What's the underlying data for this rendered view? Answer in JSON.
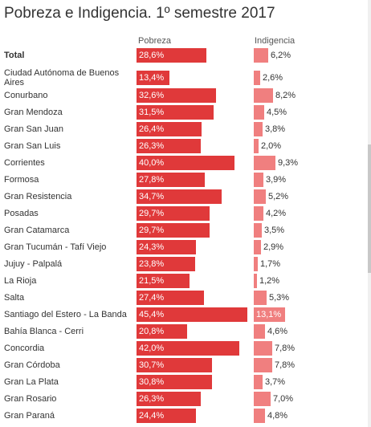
{
  "title": "Pobreza e Indigencia. 1º semestre 2017",
  "chart_data": {
    "type": "bar",
    "title": "Pobreza e Indigencia. 1º semestre 2017",
    "categories": [
      "Total",
      "Ciudad Autónoma de Buenos Aires",
      "Conurbano",
      "Gran Mendoza",
      "Gran San Juan",
      "Gran San Luis",
      "Corrientes",
      "Formosa",
      "Gran Resistencia",
      "Posadas",
      "Gran Catamarca",
      "Gran Tucumán - Tafí Viejo",
      "Jujuy - Palpalá",
      "La Rioja",
      "Salta",
      "Santiago del Estero - La Banda",
      "Bahía Blanca - Cerri",
      "Concordia",
      "Gran Córdoba",
      "Gran La Plata",
      "Gran Rosario",
      "Gran Paraná"
    ],
    "series": [
      {
        "name": "Pobreza",
        "values": [
          28.6,
          13.4,
          32.6,
          31.5,
          26.4,
          26.3,
          40.0,
          27.8,
          34.7,
          29.7,
          29.7,
          24.3,
          23.8,
          21.5,
          27.4,
          45.4,
          20.8,
          42.0,
          30.7,
          30.8,
          26.3,
          24.4
        ],
        "labels": [
          "28,6%",
          "13,4%",
          "32,6%",
          "31,5%",
          "26,4%",
          "26,3%",
          "40,0%",
          "27,8%",
          "34,7%",
          "29,7%",
          "29,7%",
          "24,3%",
          "23,8%",
          "21,5%",
          "27,4%",
          "45,4%",
          "20,8%",
          "42,0%",
          "30,7%",
          "30,8%",
          "26,3%",
          "24,4%"
        ],
        "color": "#e0393a"
      },
      {
        "name": "Indigencia",
        "values": [
          6.2,
          2.6,
          8.2,
          4.5,
          3.8,
          2.0,
          9.3,
          3.9,
          5.2,
          4.2,
          3.5,
          2.9,
          1.7,
          1.2,
          5.3,
          13.1,
          4.6,
          7.8,
          7.8,
          3.7,
          7.0,
          4.8
        ],
        "labels": [
          "6,2%",
          "2,6%",
          "8,2%",
          "4,5%",
          "3,8%",
          "2,0%",
          "9,3%",
          "3,9%",
          "5,2%",
          "4,2%",
          "3,5%",
          "2,9%",
          "1,7%",
          "1,2%",
          "5,3%",
          "13,1%",
          "4,6%",
          "7,8%",
          "7,8%",
          "3,7%",
          "7,0%",
          "4,8%"
        ],
        "color": "#f07f7f"
      }
    ],
    "grid": false,
    "legend": "top"
  }
}
